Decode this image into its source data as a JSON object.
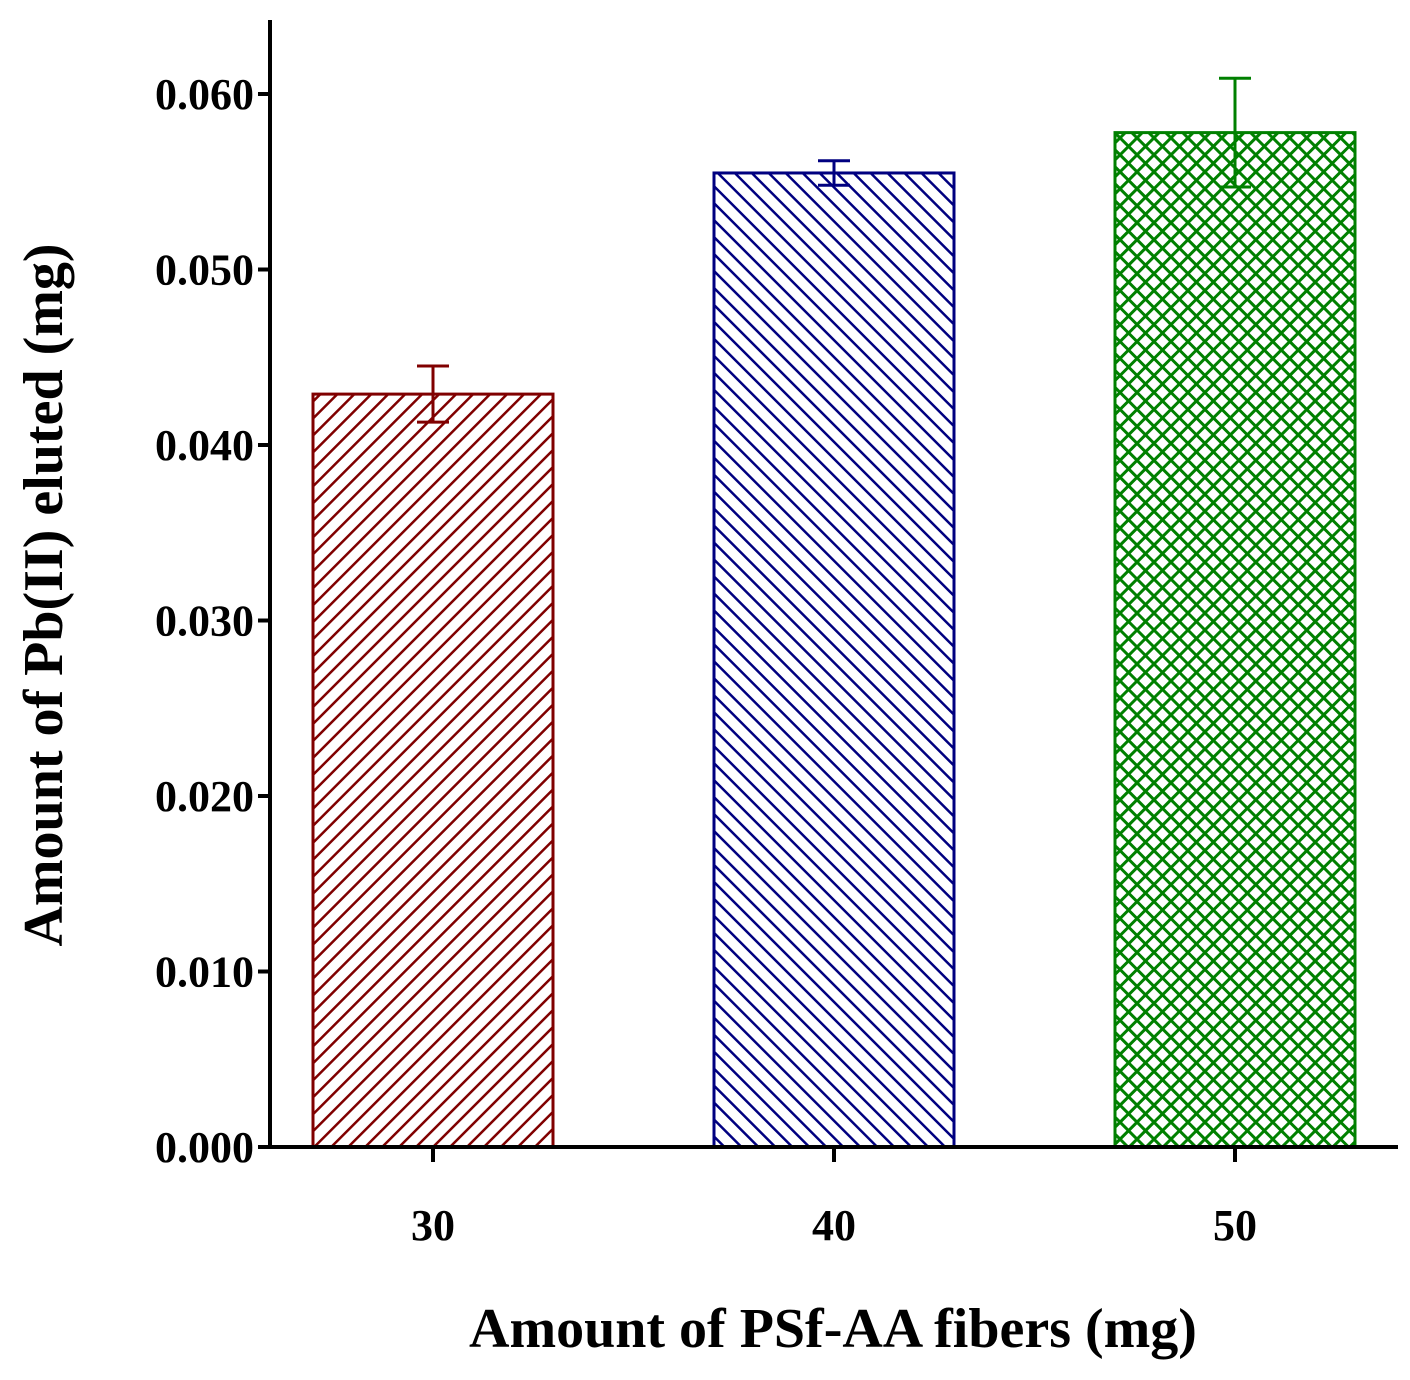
{
  "chart_data": {
    "type": "bar",
    "categories": [
      "30",
      "40",
      "50"
    ],
    "values": [
      0.0429,
      0.0555,
      0.0578
    ],
    "errors": [
      0.0016,
      0.0007,
      0.0031
    ],
    "bar_colors": [
      "#800000",
      "#000080",
      "#008000"
    ],
    "bar_patterns": [
      "diagonal-up",
      "diagonal-down",
      "crosshatch"
    ],
    "xlabel": "Amount of PSf-AA fibers (mg)",
    "ylabel": "Amount of Pb(II) eluted (mg)",
    "ylim": [
      0,
      0.064
    ],
    "yticks": [
      0.0,
      0.01,
      0.02,
      0.03,
      0.04,
      0.05,
      0.06
    ],
    "ytick_labels": [
      "0.000",
      "0.010",
      "0.020",
      "0.030",
      "0.040",
      "0.050",
      "0.060"
    ],
    "grid": false,
    "legend": "none"
  }
}
